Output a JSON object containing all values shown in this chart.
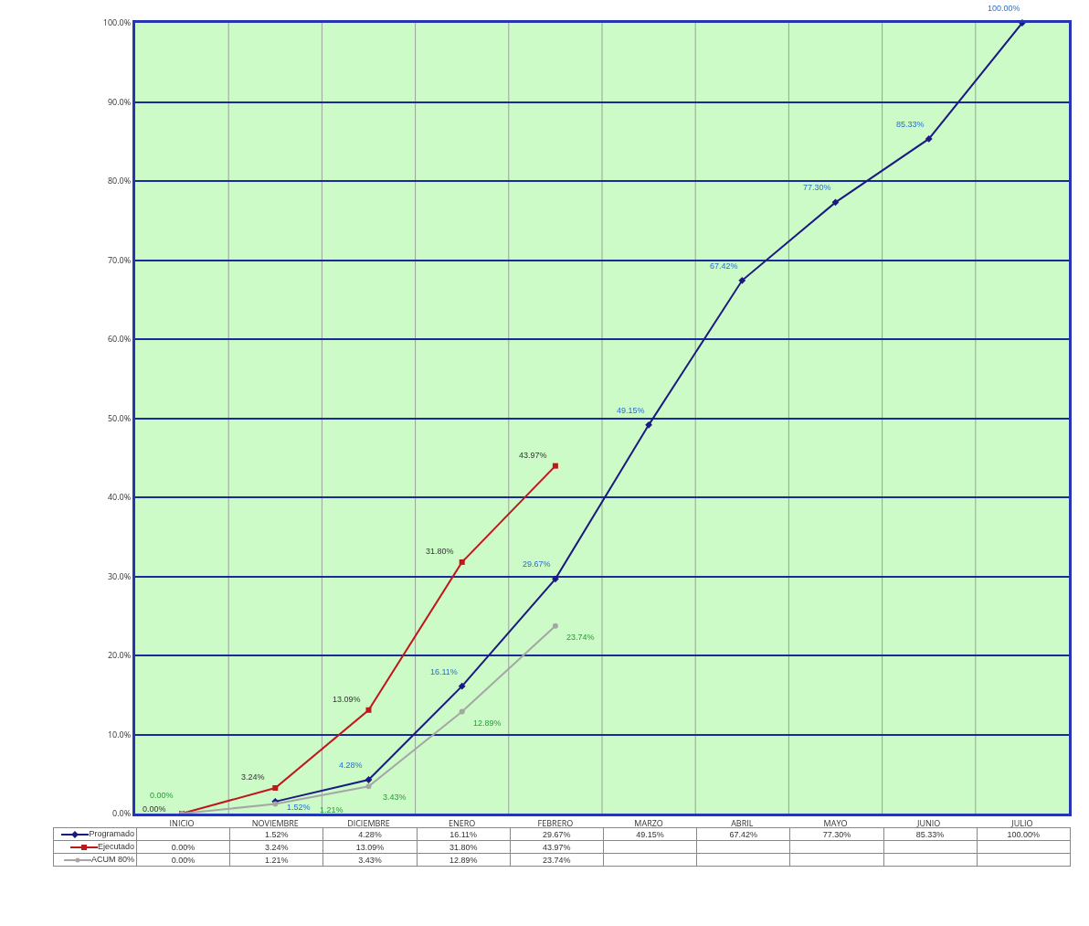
{
  "chart_data": {
    "type": "line",
    "categories": [
      "INICIO",
      "NOVIEMBRE",
      "DICIEMBRE",
      "ENERO",
      "FEBRERO",
      "MARZO",
      "ABRIL",
      "MAYO",
      "JUNIO",
      "JULIO"
    ],
    "series": [
      {
        "name": "Programado",
        "color": "#1a1a80",
        "marker": "diamond",
        "values": [
          null,
          1.52,
          4.28,
          16.11,
          29.67,
          49.15,
          67.42,
          77.3,
          85.33,
          100
        ],
        "value_labels": [
          null,
          "1.52%",
          "4.28%",
          "16.11%",
          "29.67%",
          "49.15%",
          "67.42%",
          "77.30%",
          "85.33%",
          "100.00%"
        ]
      },
      {
        "name": "Ejecutado",
        "color": "#c0171d",
        "marker": "square",
        "values": [
          0,
          3.24,
          13.09,
          31.8,
          43.97,
          null,
          null,
          null,
          null,
          null
        ],
        "value_labels": [
          "0.00%",
          "3.24%",
          "13.09%",
          "31.80%",
          "43.97%",
          null,
          null,
          null,
          null,
          null
        ]
      },
      {
        "name": "ACUM 80%",
        "color": "#a6a6a6",
        "marker": "circle",
        "values": [
          0,
          1.21,
          3.43,
          12.89,
          23.74,
          null,
          null,
          null,
          null,
          null
        ],
        "value_labels": [
          "0.00%",
          "1.21%",
          "3.43%",
          "12.89%",
          "23.74%",
          null,
          null,
          null,
          null,
          null
        ]
      }
    ],
    "ylim": [
      0,
      100
    ],
    "yticks": [
      {
        "value": 0,
        "label": "0.0%"
      },
      {
        "value": 10,
        "label": "10.0%"
      },
      {
        "value": 20,
        "label": "20.0%"
      },
      {
        "value": 30,
        "label": "30.0%"
      },
      {
        "value": 40,
        "label": "40.0%"
      },
      {
        "value": 50,
        "label": "50.0%"
      },
      {
        "value": 60,
        "label": "60.0%"
      },
      {
        "value": 70,
        "label": "70.0%"
      },
      {
        "value": 80,
        "label": "80.0%"
      },
      {
        "value": 90,
        "label": "90.0%"
      },
      {
        "value": 100,
        "label": "100.0%"
      }
    ],
    "grid": true,
    "legend": "bottom",
    "line_style": "solid"
  }
}
